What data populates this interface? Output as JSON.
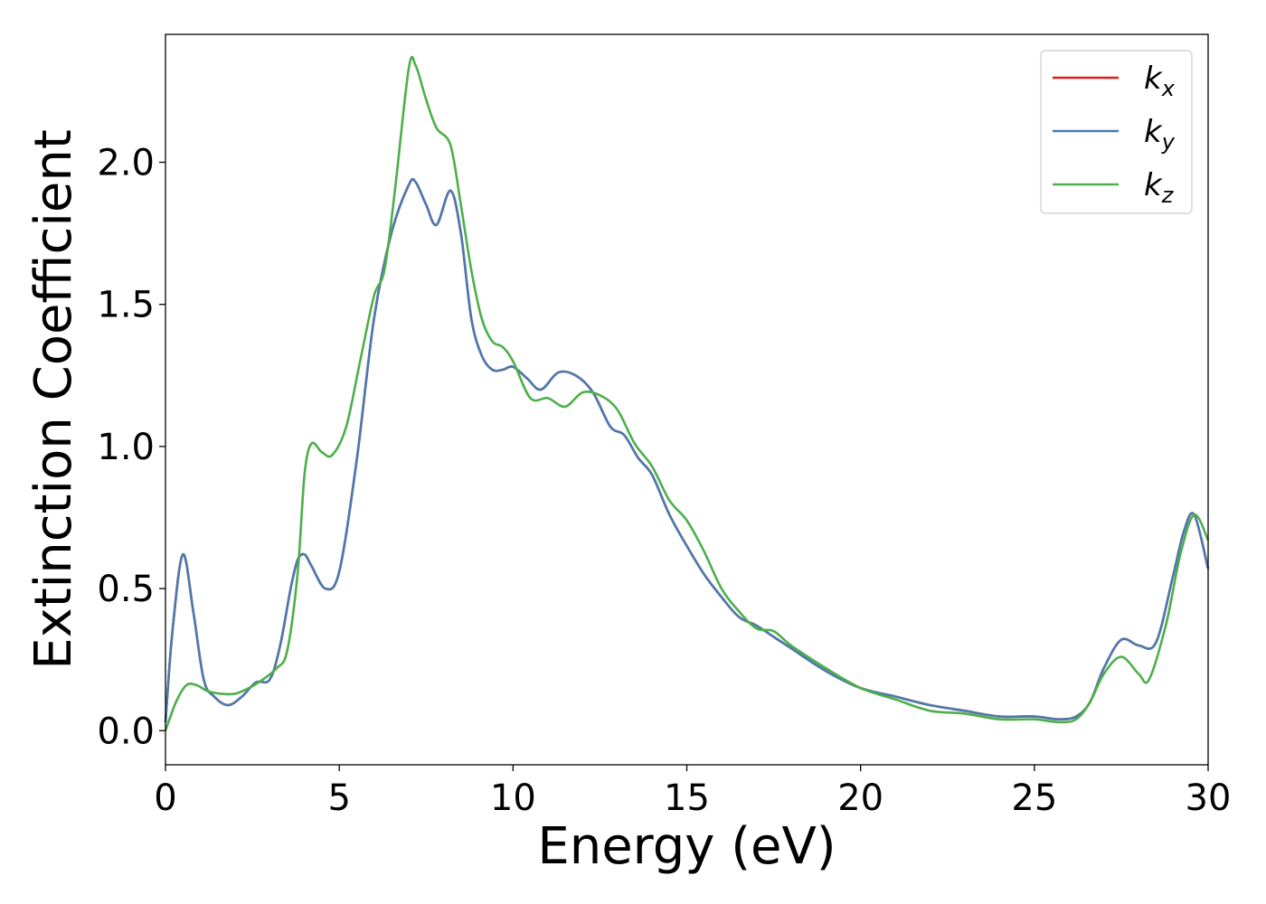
{
  "chart_data": {
    "type": "line",
    "xlabel": "Energy (eV)",
    "ylabel": "Extinction Coefficient",
    "xlim": [
      0,
      30
    ],
    "ylim": [
      -0.12,
      2.45
    ],
    "xticks": [
      0,
      5,
      10,
      15,
      20,
      25,
      30
    ],
    "xtick_labels": [
      "0",
      "5",
      "10",
      "15",
      "20",
      "25",
      "30"
    ],
    "yticks": [
      0.0,
      0.5,
      1.0,
      1.5,
      2.0
    ],
    "ytick_labels": [
      "0.0",
      "0.5",
      "1.0",
      "1.5",
      "2.0"
    ],
    "grid": false,
    "legend_position": "top-right",
    "series": [
      {
        "name": "k",
        "subscript": "x",
        "color": "#e41a1c",
        "x": [
          0,
          0.2,
          0.5,
          0.8,
          1.1,
          1.4,
          1.8,
          2.2,
          2.6,
          3.0,
          3.3,
          3.6,
          3.8,
          4.0,
          4.2,
          4.6,
          5.0,
          5.5,
          6.0,
          6.5,
          7.0,
          7.2,
          7.5,
          7.8,
          8.2,
          8.5,
          8.8,
          9.1,
          9.4,
          9.7,
          10.0,
          10.4,
          10.8,
          11.3,
          11.8,
          12.3,
          12.8,
          13.2,
          13.6,
          14.0,
          14.5,
          15.0,
          15.5,
          16.0,
          16.5,
          17.0,
          17.5,
          18.0,
          19.0,
          20.0,
          21.0,
          22.0,
          23.0,
          24.0,
          25.0,
          25.7,
          26.2,
          26.6,
          27.0,
          27.5,
          28.0,
          28.5,
          29.0,
          29.3,
          29.6,
          30.0
        ],
        "y": [
          0.03,
          0.35,
          0.62,
          0.42,
          0.18,
          0.12,
          0.09,
          0.12,
          0.17,
          0.18,
          0.3,
          0.5,
          0.6,
          0.62,
          0.58,
          0.5,
          0.56,
          0.95,
          1.45,
          1.75,
          1.92,
          1.93,
          1.85,
          1.78,
          1.9,
          1.75,
          1.45,
          1.32,
          1.27,
          1.27,
          1.28,
          1.24,
          1.2,
          1.26,
          1.25,
          1.19,
          1.07,
          1.04,
          0.96,
          0.9,
          0.76,
          0.65,
          0.55,
          0.47,
          0.4,
          0.37,
          0.33,
          0.29,
          0.21,
          0.15,
          0.12,
          0.09,
          0.07,
          0.05,
          0.05,
          0.04,
          0.05,
          0.1,
          0.22,
          0.32,
          0.3,
          0.31,
          0.55,
          0.7,
          0.76,
          0.57
        ]
      },
      {
        "name": "k",
        "subscript": "y",
        "color": "#4a7ab0",
        "x": [
          0,
          0.2,
          0.5,
          0.8,
          1.1,
          1.4,
          1.8,
          2.2,
          2.6,
          3.0,
          3.3,
          3.6,
          3.8,
          4.0,
          4.2,
          4.6,
          5.0,
          5.5,
          6.0,
          6.5,
          7.0,
          7.2,
          7.5,
          7.8,
          8.2,
          8.5,
          8.8,
          9.1,
          9.4,
          9.7,
          10.0,
          10.4,
          10.8,
          11.3,
          11.8,
          12.3,
          12.8,
          13.2,
          13.6,
          14.0,
          14.5,
          15.0,
          15.5,
          16.0,
          16.5,
          17.0,
          17.5,
          18.0,
          19.0,
          20.0,
          21.0,
          22.0,
          23.0,
          24.0,
          25.0,
          25.7,
          26.2,
          26.6,
          27.0,
          27.5,
          28.0,
          28.5,
          29.0,
          29.3,
          29.6,
          30.0
        ],
        "y": [
          0.03,
          0.35,
          0.62,
          0.42,
          0.18,
          0.12,
          0.09,
          0.12,
          0.17,
          0.18,
          0.3,
          0.5,
          0.6,
          0.62,
          0.58,
          0.5,
          0.56,
          0.95,
          1.45,
          1.75,
          1.92,
          1.93,
          1.85,
          1.78,
          1.9,
          1.75,
          1.45,
          1.32,
          1.27,
          1.27,
          1.28,
          1.24,
          1.2,
          1.26,
          1.25,
          1.19,
          1.07,
          1.04,
          0.96,
          0.9,
          0.76,
          0.65,
          0.55,
          0.47,
          0.4,
          0.37,
          0.33,
          0.29,
          0.21,
          0.15,
          0.12,
          0.09,
          0.07,
          0.05,
          0.05,
          0.04,
          0.05,
          0.1,
          0.22,
          0.32,
          0.3,
          0.31,
          0.55,
          0.7,
          0.76,
          0.57
        ]
      },
      {
        "name": "k",
        "subscript": "z",
        "color": "#4daf4a",
        "x": [
          0,
          0.3,
          0.6,
          0.9,
          1.2,
          1.6,
          2.0,
          2.4,
          2.8,
          3.2,
          3.5,
          3.8,
          4.0,
          4.2,
          4.5,
          4.8,
          5.2,
          5.6,
          6.0,
          6.3,
          6.6,
          7.0,
          7.2,
          7.5,
          7.8,
          8.2,
          8.5,
          8.8,
          9.1,
          9.4,
          9.7,
          10.0,
          10.5,
          11.0,
          11.5,
          12.0,
          12.5,
          13.0,
          13.5,
          14.0,
          14.5,
          15.0,
          15.5,
          16.0,
          16.5,
          17.0,
          17.5,
          18.0,
          19.0,
          20.0,
          21.0,
          22.0,
          23.0,
          24.0,
          25.0,
          25.7,
          26.2,
          26.6,
          27.0,
          27.5,
          28.0,
          28.3,
          28.8,
          29.2,
          29.6,
          30.0
        ],
        "y": [
          0.0,
          0.1,
          0.16,
          0.16,
          0.14,
          0.13,
          0.13,
          0.15,
          0.18,
          0.22,
          0.28,
          0.55,
          0.9,
          1.01,
          0.98,
          0.97,
          1.07,
          1.3,
          1.53,
          1.62,
          1.9,
          2.33,
          2.34,
          2.22,
          2.12,
          2.06,
          1.85,
          1.62,
          1.45,
          1.37,
          1.35,
          1.3,
          1.17,
          1.17,
          1.14,
          1.19,
          1.18,
          1.13,
          1.01,
          0.93,
          0.81,
          0.74,
          0.63,
          0.5,
          0.42,
          0.36,
          0.35,
          0.3,
          0.22,
          0.15,
          0.11,
          0.07,
          0.06,
          0.04,
          0.04,
          0.03,
          0.04,
          0.1,
          0.2,
          0.26,
          0.2,
          0.18,
          0.38,
          0.62,
          0.76,
          0.67
        ]
      }
    ]
  }
}
